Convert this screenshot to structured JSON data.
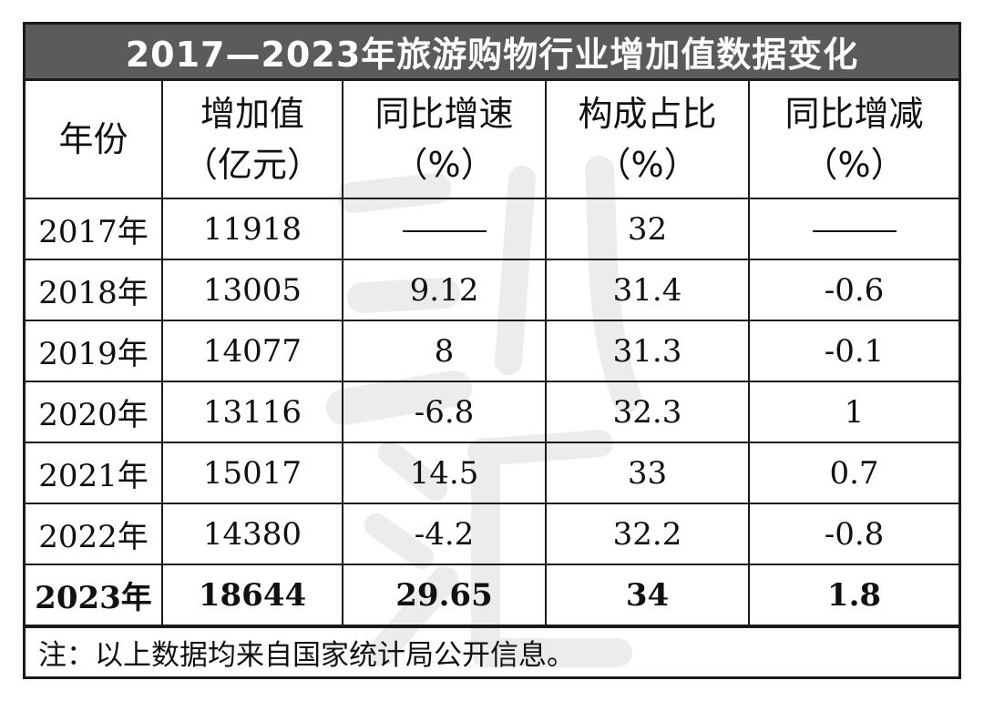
{
  "title": "2017—2023年旅游购物行业增加值数据变化",
  "note": "注：以上数据均来自国家统计局公开信息。",
  "chart_data": {
    "type": "table",
    "title": "2017—2023年旅游购物行业增加值数据变化",
    "columns": [
      {
        "key": "year",
        "lines": [
          "年份"
        ]
      },
      {
        "key": "value_added",
        "lines": [
          "增加值",
          "（亿元）"
        ]
      },
      {
        "key": "yoy_growth",
        "lines": [
          "同比增速",
          "（%）"
        ]
      },
      {
        "key": "share",
        "lines": [
          "构成占比",
          "（%）"
        ]
      },
      {
        "key": "share_change",
        "lines": [
          "同比增减",
          "（%）"
        ]
      }
    ],
    "rows": [
      {
        "year": "2017年",
        "value_added": "11918",
        "yoy_growth": "——",
        "share": "32",
        "share_change": "——",
        "bold": false
      },
      {
        "year": "2018年",
        "value_added": "13005",
        "yoy_growth": "9.12",
        "share": "31.4",
        "share_change": "-0.6",
        "bold": false
      },
      {
        "year": "2019年",
        "value_added": "14077",
        "yoy_growth": "8",
        "share": "31.3",
        "share_change": "-0.1",
        "bold": false
      },
      {
        "year": "2020年",
        "value_added": "13116",
        "yoy_growth": "-6.8",
        "share": "32.3",
        "share_change": "1",
        "bold": false
      },
      {
        "year": "2021年",
        "value_added": "15017",
        "yoy_growth": "14.5",
        "share": "33",
        "share_change": "0.7",
        "bold": false
      },
      {
        "year": "2022年",
        "value_added": "14380",
        "yoy_growth": "-4.2",
        "share": "32.2",
        "share_change": "-0.8",
        "bold": false
      },
      {
        "year": "2023年",
        "value_added": "18644",
        "yoy_growth": "29.65",
        "share": "34",
        "share_change": "1.8",
        "bold": true
      }
    ]
  },
  "colors": {
    "title_bg": "#5b5b5b",
    "title_text": "#ffffff",
    "border": "#1a1a1a",
    "watermark": "#ececec"
  },
  "watermark_icon": "watermark-brush-glyph"
}
